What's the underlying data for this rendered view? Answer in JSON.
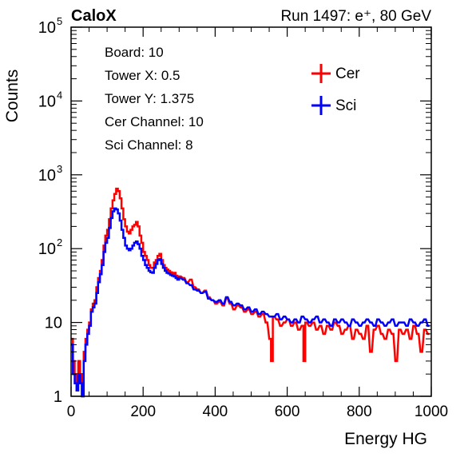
{
  "chart_data": {
    "type": "line",
    "corner_label": "CaloX",
    "run_label": "Run 1497: e⁺, 80 GeV",
    "xlabel": "Energy HG",
    "ylabel": "Counts",
    "xlim": [
      0,
      1000
    ],
    "ylim": [
      1,
      100000
    ],
    "yscale": "log",
    "grid": false,
    "x_ticks": [
      0,
      200,
      400,
      600,
      800,
      1000
    ],
    "y_ticks": [
      {
        "value": 1,
        "base": "1",
        "exp": ""
      },
      {
        "value": 10,
        "base": "10",
        "exp": ""
      },
      {
        "value": 100,
        "base": "10",
        "exp": "2"
      },
      {
        "value": 1000,
        "base": "10",
        "exp": "3"
      },
      {
        "value": 10000,
        "base": "10",
        "exp": "4"
      },
      {
        "value": 100000,
        "base": "10",
        "exp": "5"
      }
    ],
    "info": [
      "Board: 10",
      "Tower X: 0.5",
      "Tower Y: 1.375",
      "Cer Channel: 10",
      "Sci Channel: 8"
    ],
    "legend_placement": "top-right",
    "series": [
      {
        "name": "Cer",
        "color": "#ff0000",
        "bin_width": 5,
        "x": [
          0,
          5,
          10,
          15,
          20,
          25,
          30,
          35,
          40,
          45,
          50,
          55,
          60,
          65,
          70,
          75,
          80,
          85,
          90,
          95,
          100,
          105,
          110,
          115,
          120,
          125,
          130,
          135,
          140,
          145,
          150,
          155,
          160,
          165,
          170,
          175,
          180,
          185,
          190,
          195,
          200,
          205,
          210,
          215,
          220,
          225,
          230,
          235,
          240,
          245,
          250,
          255,
          260,
          265,
          270,
          275,
          280,
          285,
          290,
          295,
          300,
          310,
          320,
          330,
          340,
          350,
          360,
          370,
          380,
          390,
          400,
          410,
          420,
          430,
          440,
          450,
          460,
          470,
          480,
          490,
          500,
          510,
          520,
          530,
          540,
          550,
          555,
          560,
          570,
          580,
          590,
          600,
          610,
          620,
          630,
          640,
          645,
          650,
          660,
          670,
          680,
          690,
          700,
          710,
          720,
          730,
          740,
          750,
          760,
          770,
          780,
          790,
          800,
          810,
          820,
          830,
          840,
          850,
          860,
          870,
          880,
          890,
          900,
          910,
          920,
          930,
          940,
          950,
          960,
          970,
          980,
          990
        ],
        "y": [
          6,
          3,
          2,
          1.5,
          3,
          2,
          1,
          4,
          6,
          8,
          10,
          15,
          18,
          20,
          30,
          40,
          50,
          70,
          110,
          150,
          180,
          250,
          350,
          450,
          550,
          650,
          600,
          480,
          350,
          250,
          200,
          170,
          160,
          180,
          200,
          210,
          230,
          200,
          150,
          120,
          90,
          80,
          70,
          60,
          55,
          55,
          65,
          70,
          80,
          85,
          70,
          60,
          55,
          52,
          50,
          48,
          45,
          47,
          43,
          40,
          42,
          40,
          35,
          38,
          30,
          28,
          25,
          27,
          22,
          20,
          18,
          19,
          17,
          21,
          18,
          15,
          17,
          16,
          14,
          15,
          13,
          14,
          12,
          13,
          10,
          6,
          3,
          12,
          11,
          9,
          10,
          11,
          9,
          10,
          8,
          9,
          3,
          10,
          9,
          10,
          8,
          9,
          7,
          9,
          8,
          10,
          9,
          7,
          8,
          9,
          6,
          8,
          7,
          6,
          9,
          4,
          8,
          9,
          7,
          6,
          8,
          7,
          3,
          8,
          7,
          8,
          6,
          9,
          7,
          4,
          8,
          7
        ]
      },
      {
        "name": "Sci",
        "color": "#0000ff",
        "bin_width": 5,
        "x": [
          0,
          5,
          10,
          15,
          20,
          25,
          30,
          35,
          40,
          45,
          50,
          55,
          60,
          65,
          70,
          75,
          80,
          85,
          90,
          95,
          100,
          105,
          110,
          115,
          120,
          125,
          130,
          135,
          140,
          145,
          150,
          155,
          160,
          165,
          170,
          175,
          180,
          185,
          190,
          195,
          200,
          205,
          210,
          215,
          220,
          225,
          230,
          235,
          240,
          245,
          250,
          255,
          260,
          265,
          270,
          275,
          280,
          285,
          290,
          295,
          300,
          310,
          320,
          330,
          340,
          350,
          360,
          370,
          380,
          390,
          400,
          410,
          420,
          430,
          440,
          450,
          460,
          470,
          480,
          490,
          500,
          510,
          520,
          530,
          540,
          550,
          560,
          570,
          580,
          590,
          600,
          610,
          620,
          630,
          640,
          650,
          660,
          670,
          680,
          690,
          700,
          710,
          720,
          730,
          740,
          750,
          760,
          770,
          780,
          790,
          800,
          810,
          820,
          830,
          840,
          850,
          860,
          870,
          880,
          890,
          900,
          910,
          920,
          930,
          940,
          950,
          960,
          970,
          980,
          990
        ],
        "y": [
          5,
          2,
          1.5,
          1.2,
          2,
          1.5,
          1,
          3,
          5,
          7,
          9,
          14,
          16,
          18,
          25,
          35,
          45,
          60,
          90,
          120,
          140,
          190,
          260,
          320,
          350,
          340,
          300,
          240,
          180,
          140,
          110,
          100,
          95,
          100,
          110,
          120,
          125,
          115,
          100,
          80,
          70,
          60,
          55,
          50,
          48,
          47,
          55,
          62,
          70,
          72,
          62,
          55,
          50,
          47,
          46,
          44,
          43,
          42,
          40,
          38,
          40,
          38,
          34,
          32,
          28,
          27,
          25,
          26,
          21,
          20,
          19,
          20,
          18,
          22,
          19,
          17,
          18,
          17,
          15,
          16,
          14,
          15,
          13,
          14,
          13,
          12,
          12,
          13,
          11,
          12,
          11,
          10,
          11,
          10,
          12,
          11,
          10,
          11,
          12,
          10,
          11,
          10,
          9,
          11,
          10,
          11,
          10,
          9,
          11,
          10,
          9,
          10,
          11,
          10,
          9,
          11,
          10,
          9,
          10,
          11,
          9,
          10,
          10,
          9,
          11,
          10,
          9,
          10,
          11,
          9
        ]
      }
    ]
  }
}
